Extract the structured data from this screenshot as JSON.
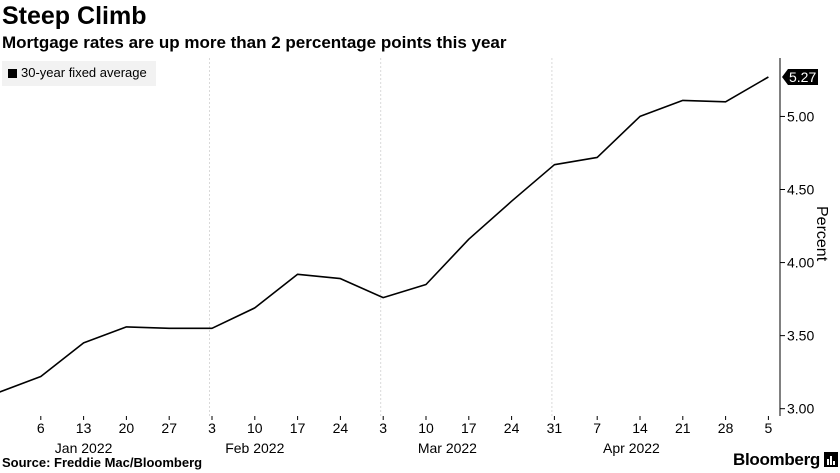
{
  "header": {
    "title": "Steep Climb",
    "subtitle": "Mortgage rates are up more than 2 percentage points this year"
  },
  "footer": {
    "source": "Source: Freddie Mac/Bloomberg",
    "brand": "Bloomberg"
  },
  "chart_data": {
    "type": "line",
    "ylabel": "Percent",
    "ylim": [
      2.95,
      5.4
    ],
    "y_ticks": [
      "3.00",
      "3.50",
      "4.00",
      "4.50",
      "5.00"
    ],
    "grid": "vertical",
    "legend": {
      "position": "top-left",
      "entries": [
        "30-year fixed average"
      ]
    },
    "last_value_label": "5.27",
    "x_ticks": [
      "6",
      "13",
      "20",
      "27",
      "3",
      "10",
      "17",
      "24",
      "3",
      "10",
      "17",
      "24",
      "31",
      "7",
      "14",
      "21",
      "28",
      "5"
    ],
    "month_labels": [
      "Jan 2022",
      "Feb 2022",
      "Mar 2022",
      "Apr 2022"
    ],
    "series": [
      {
        "name": "30-year fixed average",
        "color": "#000000",
        "x": [
          "Dec 30",
          "Jan 6",
          "Jan 13",
          "Jan 20",
          "Jan 27",
          "Feb 3",
          "Feb 10",
          "Feb 17",
          "Feb 24",
          "Mar 3",
          "Mar 10",
          "Mar 17",
          "Mar 24",
          "Mar 31",
          "Apr 7",
          "Apr 14",
          "Apr 21",
          "Apr 28",
          "May 5"
        ],
        "values": [
          3.11,
          3.22,
          3.45,
          3.56,
          3.55,
          3.55,
          3.69,
          3.92,
          3.89,
          3.76,
          3.85,
          4.16,
          4.42,
          4.67,
          4.72,
          5.0,
          5.11,
          5.1,
          5.27
        ]
      }
    ]
  }
}
